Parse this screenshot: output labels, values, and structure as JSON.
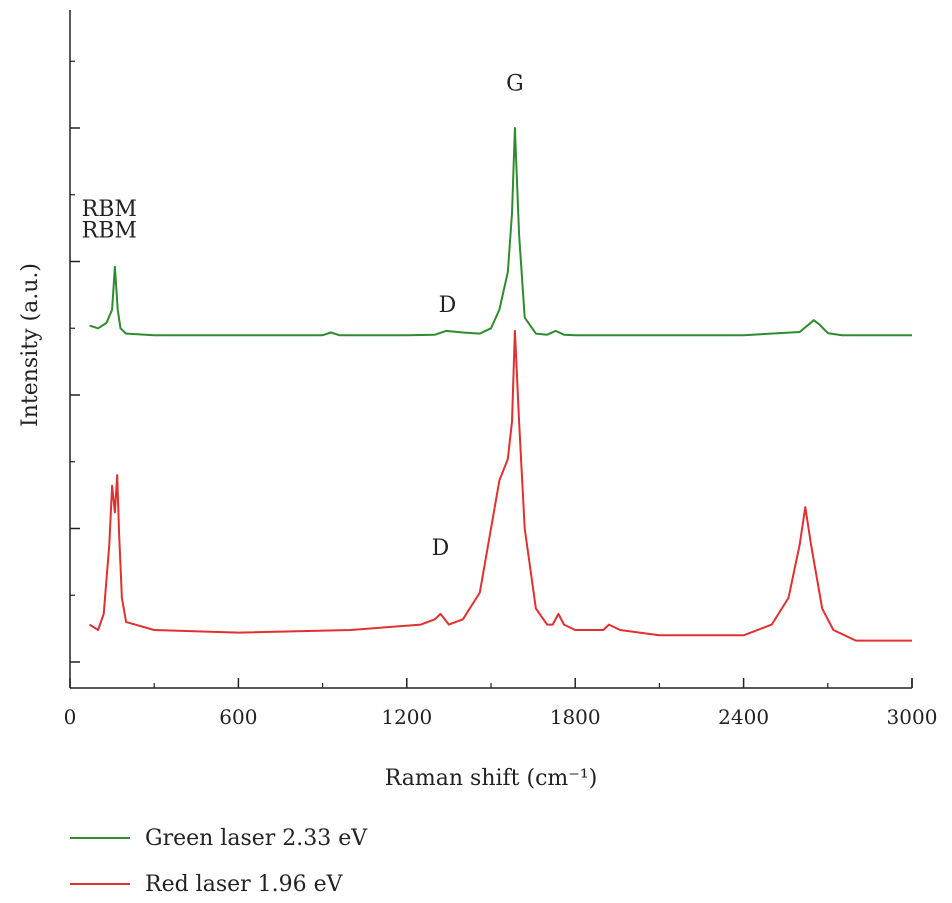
{
  "chart_data": {
    "type": "line",
    "title": "",
    "xlabel": "Raman shift (cm⁻¹)",
    "ylabel": "Intensity (a.u.)",
    "xlim": [
      0,
      3000
    ],
    "ylim": [
      0,
      1
    ],
    "x_ticks": [
      "0",
      "600",
      "1200",
      "1800",
      "2400",
      "3000"
    ],
    "legend_position": "bottom-left, below plot",
    "series": [
      {
        "name": "Green laser 2.33 eV",
        "color": "#2e8b2e",
        "x": [
          70,
          100,
          130,
          150,
          160,
          170,
          180,
          200,
          300,
          600,
          900,
          930,
          960,
          1200,
          1300,
          1340,
          1400,
          1460,
          1500,
          1530,
          1560,
          1575,
          1585,
          1600,
          1620,
          1660,
          1700,
          1730,
          1760,
          1800,
          2000,
          2400,
          2600,
          2650,
          2670,
          2700,
          2750,
          3000
        ],
        "y": [
          0.63,
          0.625,
          0.635,
          0.66,
          0.74,
          0.66,
          0.625,
          0.615,
          0.612,
          0.612,
          0.612,
          0.617,
          0.612,
          0.612,
          0.613,
          0.62,
          0.617,
          0.615,
          0.625,
          0.66,
          0.73,
          0.84,
          1.0,
          0.8,
          0.645,
          0.615,
          0.613,
          0.62,
          0.613,
          0.612,
          0.612,
          0.612,
          0.618,
          0.64,
          0.632,
          0.616,
          0.612,
          0.612
        ]
      },
      {
        "name": "Red laser 1.96 eV",
        "color": "#e03030",
        "x": [
          70,
          100,
          120,
          140,
          150,
          160,
          168,
          175,
          185,
          200,
          300,
          600,
          1000,
          1250,
          1300,
          1320,
          1350,
          1400,
          1460,
          1500,
          1530,
          1560,
          1575,
          1585,
          1600,
          1620,
          1660,
          1700,
          1720,
          1740,
          1760,
          1800,
          1900,
          1920,
          1960,
          2100,
          2400,
          2500,
          2560,
          2600,
          2620,
          2640,
          2680,
          2720,
          2800,
          3000
        ],
        "y": [
          0.07,
          0.06,
          0.09,
          0.22,
          0.33,
          0.28,
          0.35,
          0.24,
          0.12,
          0.075,
          0.06,
          0.055,
          0.06,
          0.07,
          0.08,
          0.09,
          0.07,
          0.08,
          0.13,
          0.25,
          0.34,
          0.38,
          0.45,
          0.62,
          0.45,
          0.25,
          0.1,
          0.07,
          0.07,
          0.09,
          0.07,
          0.06,
          0.06,
          0.07,
          0.06,
          0.05,
          0.05,
          0.07,
          0.12,
          0.22,
          0.29,
          0.22,
          0.1,
          0.06,
          0.04,
          0.04
        ]
      }
    ],
    "annotations": [
      {
        "text": "RBM",
        "series": 0
      },
      {
        "text": "D",
        "series": 0
      },
      {
        "text": "G",
        "series": 0
      },
      {
        "text": "RBM",
        "series": 1
      },
      {
        "text": "D",
        "series": 1
      }
    ]
  }
}
